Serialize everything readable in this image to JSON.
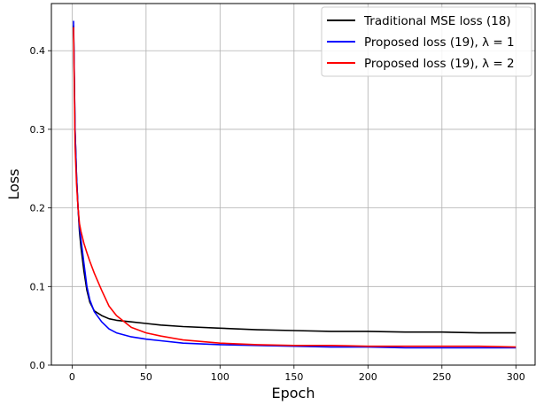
{
  "chart_data": {
    "type": "line",
    "title": "",
    "xlabel": "Epoch",
    "ylabel": "Loss",
    "xlim": [
      -14,
      313
    ],
    "ylim": [
      0,
      0.46
    ],
    "grid": true,
    "legend_position": "top-right",
    "x_ticks": [
      0,
      50,
      100,
      150,
      200,
      250,
      300
    ],
    "y_ticks": [
      0.0,
      0.1,
      0.2,
      0.3,
      0.4
    ],
    "x_tick_labels": [
      "0",
      "50",
      "100",
      "150",
      "200",
      "250",
      "300"
    ],
    "y_tick_labels": [
      "0.0",
      "0.1",
      "0.2",
      "0.3",
      "0.4"
    ],
    "series": [
      {
        "name": "Traditional MSE loss (18)",
        "color": "#000000",
        "x": [
          1,
          2,
          3,
          4,
          5,
          6,
          8,
          10,
          12,
          15,
          20,
          25,
          30,
          40,
          50,
          60,
          75,
          100,
          125,
          150,
          175,
          200,
          225,
          250,
          275,
          300
        ],
        "y": [
          0.432,
          0.3,
          0.24,
          0.2,
          0.17,
          0.15,
          0.12,
          0.095,
          0.08,
          0.069,
          0.063,
          0.059,
          0.057,
          0.055,
          0.053,
          0.051,
          0.049,
          0.047,
          0.045,
          0.044,
          0.043,
          0.043,
          0.042,
          0.042,
          0.041,
          0.041
        ]
      },
      {
        "name": "Proposed loss (19), λ = 1",
        "color": "#0000ff",
        "x": [
          1,
          2,
          3,
          4,
          5,
          6,
          8,
          10,
          12,
          15,
          20,
          25,
          30,
          40,
          50,
          60,
          75,
          100,
          125,
          150,
          175,
          200,
          225,
          250,
          275,
          300
        ],
        "y": [
          0.438,
          0.3,
          0.24,
          0.2,
          0.175,
          0.16,
          0.13,
          0.1,
          0.083,
          0.068,
          0.055,
          0.046,
          0.041,
          0.036,
          0.033,
          0.031,
          0.028,
          0.026,
          0.025,
          0.024,
          0.023,
          0.023,
          0.022,
          0.022,
          0.022,
          0.022
        ]
      },
      {
        "name": "Proposed loss (19), λ = 2",
        "color": "#ff0000",
        "x": [
          1,
          2,
          3,
          4,
          5,
          6,
          8,
          10,
          12,
          15,
          20,
          25,
          30,
          40,
          50,
          60,
          75,
          100,
          125,
          150,
          175,
          200,
          225,
          250,
          275,
          300
        ],
        "y": [
          0.43,
          0.28,
          0.23,
          0.2,
          0.18,
          0.17,
          0.155,
          0.143,
          0.132,
          0.117,
          0.095,
          0.075,
          0.063,
          0.048,
          0.041,
          0.037,
          0.032,
          0.028,
          0.026,
          0.025,
          0.025,
          0.024,
          0.024,
          0.024,
          0.024,
          0.023
        ]
      }
    ]
  }
}
